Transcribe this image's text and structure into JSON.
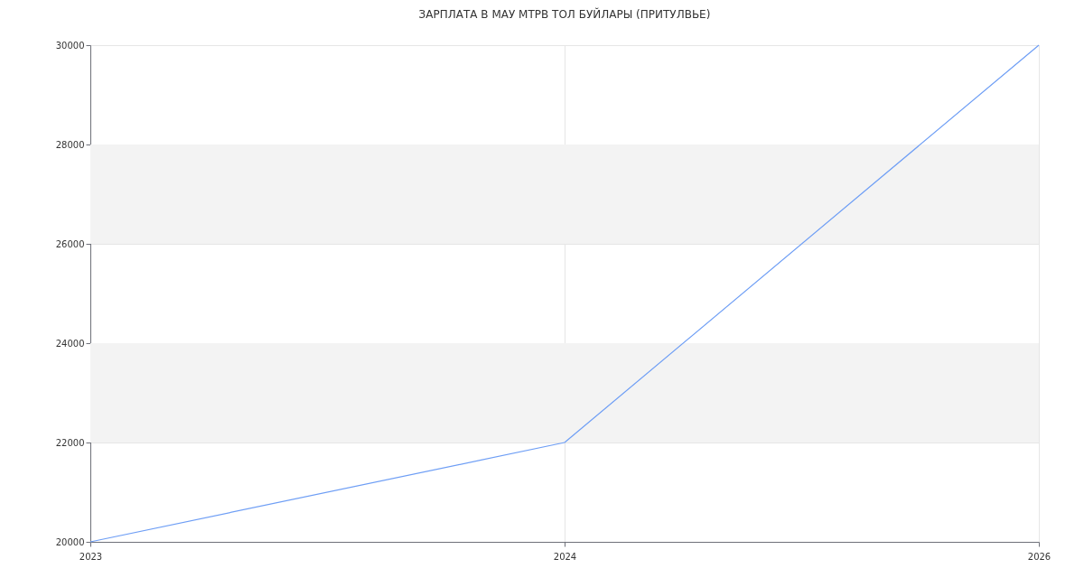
{
  "chart_data": {
    "type": "line",
    "title": "ЗАРПЛАТА В МАУ МТРВ ТОЛ БУЙЛАРЫ (ПРИТУЛВЬЕ)",
    "categories": [
      "2023",
      "2024",
      "2026"
    ],
    "series": [
      {
        "color": "#6e9ef5",
        "values": [
          20000,
          22000,
          30000
        ]
      }
    ],
    "ylim": [
      20000,
      30000
    ],
    "yticks": [
      20000,
      22000,
      24000,
      26000,
      28000,
      30000
    ],
    "grid": true,
    "marker": "none",
    "line_style": "solid",
    "bands": [
      {
        "axis": "y",
        "from": 22000,
        "to": 24000,
        "color": "#f3f3f3"
      },
      {
        "axis": "y",
        "from": 26000,
        "to": 28000,
        "color": "#f3f3f3"
      }
    ]
  }
}
